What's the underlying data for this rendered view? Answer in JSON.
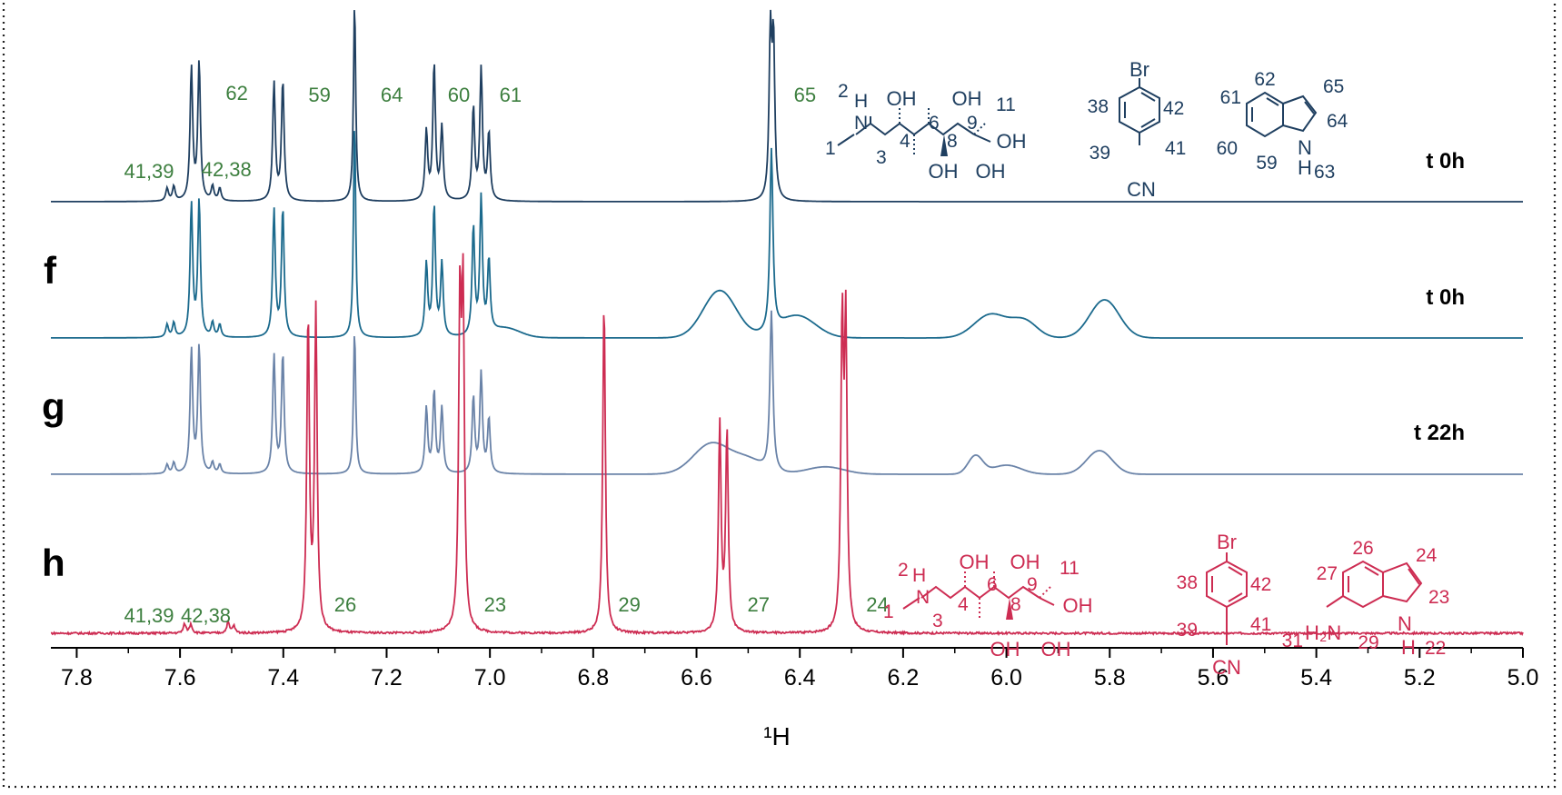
{
  "chart_data": {
    "type": "line",
    "xlabel": "¹H",
    "xlim": [
      7.85,
      5.0
    ],
    "x_ticks": [
      "7.8",
      "7.6",
      "7.4",
      "7.2",
      "7.0",
      "6.8",
      "6.6",
      "6.4",
      "6.2",
      "6.0",
      "5.8",
      "5.6",
      "5.4",
      "5.2",
      "5.0"
    ],
    "x_tick_values": [
      7.8,
      7.6,
      7.4,
      7.2,
      7.0,
      6.8,
      6.6,
      6.4,
      6.2,
      6.0,
      5.8,
      5.6,
      5.4,
      5.2,
      5.0
    ],
    "colors": {
      "top": "#1f3f60",
      "f": "#1b6a8d",
      "g": "#6a83a8",
      "h": "#cd2c52",
      "peak_labels": "#3d7f3f"
    },
    "series": [
      {
        "panel": "",
        "time": "t 0h",
        "color": "#1f3f60",
        "baseline_y": 222,
        "peaks": [
          {
            "ppm": 7.625,
            "h": 14,
            "w": 0.003
          },
          {
            "ppm": 7.612,
            "h": 16,
            "w": 0.003
          },
          {
            "ppm": 7.578,
            "h": 146,
            "w": 0.003
          },
          {
            "ppm": 7.563,
            "h": 152,
            "w": 0.003
          },
          {
            "ppm": 7.537,
            "h": 16,
            "w": 0.003
          },
          {
            "ppm": 7.523,
            "h": 14,
            "w": 0.003
          },
          {
            "ppm": 7.418,
            "h": 130,
            "w": 0.003
          },
          {
            "ppm": 7.401,
            "h": 132,
            "w": 0.003
          },
          {
            "ppm": 7.262,
            "h": 222,
            "w": 0.0025
          },
          {
            "ppm": 7.123,
            "h": 76,
            "w": 0.003
          },
          {
            "ppm": 7.108,
            "h": 150,
            "w": 0.003
          },
          {
            "ppm": 7.093,
            "h": 80,
            "w": 0.003
          },
          {
            "ppm": 7.032,
            "h": 102,
            "w": 0.003
          },
          {
            "ppm": 7.017,
            "h": 144,
            "w": 0.003
          },
          {
            "ppm": 7.002,
            "h": 74,
            "w": 0.003
          },
          {
            "ppm": 6.457,
            "h": 176,
            "w": 0.003
          },
          {
            "ppm": 6.451,
            "h": 170,
            "w": 0.003
          }
        ],
        "humps": []
      },
      {
        "panel": "f",
        "time": "t 0h",
        "color": "#1b6a8d",
        "baseline_y": 372,
        "peaks": [
          {
            "ppm": 7.625,
            "h": 14,
            "w": 0.003
          },
          {
            "ppm": 7.612,
            "h": 16,
            "w": 0.003
          },
          {
            "ppm": 7.578,
            "h": 146,
            "w": 0.003
          },
          {
            "ppm": 7.563,
            "h": 150,
            "w": 0.003
          },
          {
            "ppm": 7.537,
            "h": 16,
            "w": 0.003
          },
          {
            "ppm": 7.523,
            "h": 14,
            "w": 0.003
          },
          {
            "ppm": 7.418,
            "h": 140,
            "w": 0.003
          },
          {
            "ppm": 7.401,
            "h": 142,
            "w": 0.003
          },
          {
            "ppm": 7.262,
            "h": 240,
            "w": 0.0025
          },
          {
            "ppm": 7.123,
            "h": 80,
            "w": 0.003
          },
          {
            "ppm": 7.108,
            "h": 144,
            "w": 0.003
          },
          {
            "ppm": 7.093,
            "h": 80,
            "w": 0.003
          },
          {
            "ppm": 7.032,
            "h": 120,
            "w": 0.003
          },
          {
            "ppm": 7.017,
            "h": 150,
            "w": 0.003
          },
          {
            "ppm": 7.002,
            "h": 80,
            "w": 0.003
          },
          {
            "ppm": 6.455,
            "h": 200,
            "w": 0.0035
          }
        ],
        "humps": [
          {
            "ppm": 6.555,
            "h": 52,
            "w": 0.045
          },
          {
            "ppm": 6.405,
            "h": 24,
            "w": 0.05
          },
          {
            "ppm": 6.03,
            "h": 26,
            "w": 0.045
          },
          {
            "ppm": 5.965,
            "h": 18,
            "w": 0.035
          },
          {
            "ppm": 5.81,
            "h": 42,
            "w": 0.04
          },
          {
            "ppm": 6.97,
            "h": 10,
            "w": 0.04
          }
        ]
      },
      {
        "panel": "g",
        "time": "t 22h",
        "color": "#6a83a8",
        "baseline_y": 522,
        "peaks": [
          {
            "ppm": 7.625,
            "h": 10,
            "w": 0.003
          },
          {
            "ppm": 7.612,
            "h": 12,
            "w": 0.003
          },
          {
            "ppm": 7.578,
            "h": 136,
            "w": 0.003
          },
          {
            "ppm": 7.563,
            "h": 140,
            "w": 0.003
          },
          {
            "ppm": 7.537,
            "h": 12,
            "w": 0.003
          },
          {
            "ppm": 7.523,
            "h": 10,
            "w": 0.003
          },
          {
            "ppm": 7.418,
            "h": 130,
            "w": 0.003
          },
          {
            "ppm": 7.401,
            "h": 132,
            "w": 0.003
          },
          {
            "ppm": 7.262,
            "h": 160,
            "w": 0.0025
          },
          {
            "ppm": 7.123,
            "h": 72,
            "w": 0.003
          },
          {
            "ppm": 7.108,
            "h": 90,
            "w": 0.003
          },
          {
            "ppm": 7.093,
            "h": 72,
            "w": 0.003
          },
          {
            "ppm": 7.032,
            "h": 84,
            "w": 0.003
          },
          {
            "ppm": 7.017,
            "h": 110,
            "w": 0.003
          },
          {
            "ppm": 7.002,
            "h": 60,
            "w": 0.003
          },
          {
            "ppm": 6.455,
            "h": 176,
            "w": 0.0035
          }
        ],
        "humps": [
          {
            "ppm": 6.57,
            "h": 34,
            "w": 0.05
          },
          {
            "ppm": 6.5,
            "h": 14,
            "w": 0.04
          },
          {
            "ppm": 6.06,
            "h": 20,
            "w": 0.02
          },
          {
            "ppm": 6.0,
            "h": 10,
            "w": 0.04
          },
          {
            "ppm": 5.82,
            "h": 26,
            "w": 0.035
          },
          {
            "ppm": 6.35,
            "h": 8,
            "w": 0.05
          }
        ]
      },
      {
        "panel": "h",
        "time": "",
        "color": "#cd2c52",
        "baseline_y": 697,
        "peaks": [
          {
            "ppm": 7.591,
            "h": 10,
            "w": 0.003
          },
          {
            "ppm": 7.579,
            "h": 10,
            "w": 0.003
          },
          {
            "ppm": 7.507,
            "h": 12,
            "w": 0.003
          },
          {
            "ppm": 7.496,
            "h": 8,
            "w": 0.003
          },
          {
            "ppm": 7.352,
            "h": 346,
            "w": 0.003
          },
          {
            "ppm": 7.337,
            "h": 354,
            "w": 0.003
          },
          {
            "ppm": 7.058,
            "h": 344,
            "w": 0.003
          },
          {
            "ppm": 7.052,
            "h": 350,
            "w": 0.003
          },
          {
            "ppm": 6.779,
            "h": 366,
            "w": 0.003
          },
          {
            "ppm": 6.555,
            "h": 228,
            "w": 0.003
          },
          {
            "ppm": 6.541,
            "h": 220,
            "w": 0.003
          },
          {
            "ppm": 6.318,
            "h": 330,
            "w": 0.003
          },
          {
            "ppm": 6.311,
            "h": 326,
            "w": 0.003
          }
        ],
        "humps": []
      }
    ],
    "peak_labels": [
      {
        "series": 0,
        "text": "41,39",
        "ppm": 7.66,
        "above": 26
      },
      {
        "series": 0,
        "text": "62",
        "ppm": 7.49,
        "above": 112
      },
      {
        "series": 0,
        "text": "42,38",
        "ppm": 7.51,
        "above": 28
      },
      {
        "series": 0,
        "text": "59",
        "ppm": 7.33,
        "above": 110
      },
      {
        "series": 0,
        "text": "64",
        "ppm": 7.19,
        "above": 110
      },
      {
        "series": 0,
        "text": "60",
        "ppm": 7.06,
        "above": 110
      },
      {
        "series": 0,
        "text": "61",
        "ppm": 6.96,
        "above": 110
      },
      {
        "series": 0,
        "text": "65",
        "ppm": 6.39,
        "above": 110
      },
      {
        "series": 3,
        "text": "41,39",
        "ppm": 7.66,
        "above": 12
      },
      {
        "series": 3,
        "text": "42,38",
        "ppm": 7.55,
        "above": 12
      },
      {
        "series": 3,
        "text": "26",
        "ppm": 7.28,
        "above": 24
      },
      {
        "series": 3,
        "text": "23",
        "ppm": 6.99,
        "above": 24
      },
      {
        "series": 3,
        "text": "29",
        "ppm": 6.73,
        "above": 24
      },
      {
        "series": 3,
        "text": "27",
        "ppm": 6.48,
        "above": 24
      },
      {
        "series": 3,
        "text": "24",
        "ppm": 6.25,
        "above": 24
      }
    ],
    "structures": {
      "top": {
        "glucamine_numbers": [
          "2",
          "H",
          "N",
          "1",
          "3",
          "4",
          "6",
          "8",
          "9",
          "11"
        ],
        "glucamine_groups": [
          "OH",
          "OH",
          "OH",
          "OH",
          "OH"
        ],
        "benzonitrile_numbers": [
          "38",
          "42",
          "39",
          "41"
        ],
        "benzonitrile_groups": [
          "Br",
          "CN"
        ],
        "indole_numbers": [
          "61",
          "62",
          "65",
          "64",
          "60",
          "59",
          "63"
        ],
        "indole_groups": [
          "N",
          "H"
        ]
      },
      "bottom": {
        "glucamine_numbers": [
          "2",
          "H",
          "N",
          "1",
          "3",
          "4",
          "6",
          "8",
          "9",
          "11"
        ],
        "glucamine_groups": [
          "OH",
          "OH",
          "OH",
          "OH",
          "OH"
        ],
        "benzonitrile_numbers": [
          "38",
          "42",
          "39",
          "41"
        ],
        "benzonitrile_groups": [
          "Br",
          "CN"
        ],
        "indole_numbers": [
          "26",
          "24",
          "27",
          "23",
          "31",
          "29",
          "22"
        ],
        "indole_groups": [
          "H₂N",
          "N",
          "H"
        ]
      }
    }
  }
}
